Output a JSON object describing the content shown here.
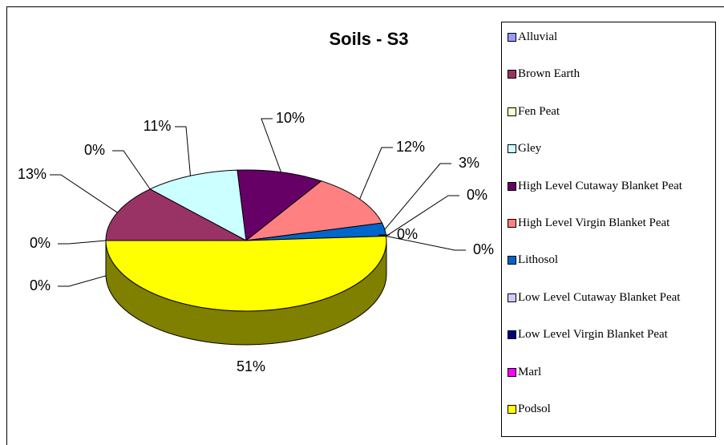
{
  "chart_data": {
    "type": "pie",
    "title": "Soils - S3",
    "categories": [
      "Alluvial",
      "Brown Earth",
      "Fen Peat",
      "Gley",
      "High Level Cutaway Blanket Peat",
      "High Level Virgin Blanket Peat",
      "Lithosol",
      "Low Level Cutaway Blanket Peat",
      "Low Level Virgin Blanket Peat",
      "Marl",
      "Podsol",
      "(blank)"
    ],
    "values": [
      0,
      13,
      0,
      11,
      10,
      12,
      3,
      0,
      0,
      0,
      51,
      0
    ],
    "value_labels": [
      "0%",
      "13%",
      "0%",
      "11%",
      "10%",
      "12%",
      "3%",
      "0%",
      "0%",
      "0%",
      "51%",
      "0%"
    ],
    "colors": [
      "#9999ff",
      "#993366",
      "#ffffcc",
      "#ccffff",
      "#660066",
      "#ff8080",
      "#0066cc",
      "#ccccff",
      "#000080",
      "#ff00ff",
      "#ffff00",
      "#00ffff"
    ],
    "legend": "right"
  }
}
